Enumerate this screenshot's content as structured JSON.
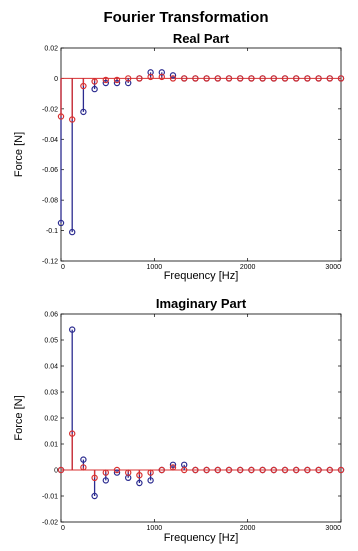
{
  "figure_title": "Fourier Transformation",
  "colors": {
    "series_blue": "#2b2b8f",
    "series_red": "#d83030",
    "zero_line": "#d83030"
  },
  "chart_data": [
    {
      "type": "stem",
      "title": "Real Part",
      "xlabel": "Frequency [Hz]",
      "ylabel": "Force [N]",
      "xlim": [
        0,
        3000
      ],
      "ylim": [
        -0.12,
        0.02
      ],
      "xticks": [
        0,
        1000,
        2000,
        3000
      ],
      "yticks": [
        -0.12,
        -0.1,
        -0.08,
        -0.06,
        -0.04,
        -0.02,
        0,
        0.02
      ],
      "ytick_labels": [
        "-0.12",
        "-0.1",
        "-0.08",
        "-0.06",
        "-0.04",
        "-0.02",
        "0",
        "0.02"
      ],
      "xtick_labels": [
        "0",
        "1000",
        "2000",
        "3000"
      ],
      "grid": false,
      "series": [
        {
          "x": [
            0,
            120,
            240,
            360,
            480,
            600,
            720,
            840,
            960,
            1080,
            1200,
            1320,
            1440,
            1560,
            1680,
            1800,
            1920,
            2040,
            2160,
            2280,
            2400,
            2520,
            2640,
            2760,
            2880,
            3000
          ],
          "values": [
            -0.095,
            -0.101,
            -0.022,
            -0.007,
            -0.003,
            -0.003,
            -0.003,
            0.0,
            0.004,
            0.004,
            0.002,
            0.0,
            0.0,
            0.0,
            0.0,
            0.0,
            0.0,
            0.0,
            0.0,
            0.0,
            0.0,
            0.0,
            0.0,
            0.0,
            0.0,
            0.0
          ]
        },
        {
          "x": [
            0,
            120,
            240,
            360,
            480,
            600,
            720,
            840,
            960,
            1080,
            1200,
            1320,
            1440,
            1560,
            1680,
            1800,
            1920,
            2040,
            2160,
            2280,
            2400,
            2520,
            2640,
            2760,
            2880,
            3000
          ],
          "values": [
            -0.025,
            -0.027,
            -0.005,
            -0.002,
            -0.001,
            -0.001,
            0.0,
            0.0,
            0.001,
            0.001,
            0.0,
            0.0,
            0.0,
            0.0,
            0.0,
            0.0,
            0.0,
            0.0,
            0.0,
            0.0,
            0.0,
            0.0,
            0.0,
            0.0,
            0.0,
            0.0
          ]
        }
      ]
    },
    {
      "type": "stem",
      "title": "Imaginary Part",
      "xlabel": "Frequency [Hz]",
      "ylabel": "Force [N]",
      "xlim": [
        0,
        3000
      ],
      "ylim": [
        -0.02,
        0.06
      ],
      "xticks": [
        0,
        1000,
        2000,
        3000
      ],
      "yticks": [
        -0.02,
        -0.01,
        0,
        0.01,
        0.02,
        0.03,
        0.04,
        0.05,
        0.06
      ],
      "ytick_labels": [
        "-0.02",
        "-0.01",
        "0",
        "0.01",
        "0.02",
        "0.03",
        "0.04",
        "0.05",
        "0.06"
      ],
      "xtick_labels": [
        "0",
        "1000",
        "2000",
        "3000"
      ],
      "grid": false,
      "series": [
        {
          "x": [
            0,
            120,
            240,
            360,
            480,
            600,
            720,
            840,
            960,
            1080,
            1200,
            1320,
            1440,
            1560,
            1680,
            1800,
            1920,
            2040,
            2160,
            2280,
            2400,
            2520,
            2640,
            2760,
            2880,
            3000
          ],
          "values": [
            0.0,
            0.054,
            0.004,
            -0.01,
            -0.004,
            -0.001,
            -0.003,
            -0.005,
            -0.004,
            0.0,
            0.002,
            0.002,
            0.0,
            0.0,
            0.0,
            0.0,
            0.0,
            0.0,
            0.0,
            0.0,
            0.0,
            0.0,
            0.0,
            0.0,
            0.0,
            0.0
          ]
        },
        {
          "x": [
            0,
            120,
            240,
            360,
            480,
            600,
            720,
            840,
            960,
            1080,
            1200,
            1320,
            1440,
            1560,
            1680,
            1800,
            1920,
            2040,
            2160,
            2280,
            2400,
            2520,
            2640,
            2760,
            2880,
            3000
          ],
          "values": [
            0.0,
            0.014,
            0.001,
            -0.003,
            -0.001,
            0.0,
            -0.001,
            -0.002,
            -0.001,
            0.0,
            0.001,
            0.0,
            0.0,
            0.0,
            0.0,
            0.0,
            0.0,
            0.0,
            0.0,
            0.0,
            0.0,
            0.0,
            0.0,
            0.0,
            0.0,
            0.0
          ]
        }
      ]
    }
  ]
}
